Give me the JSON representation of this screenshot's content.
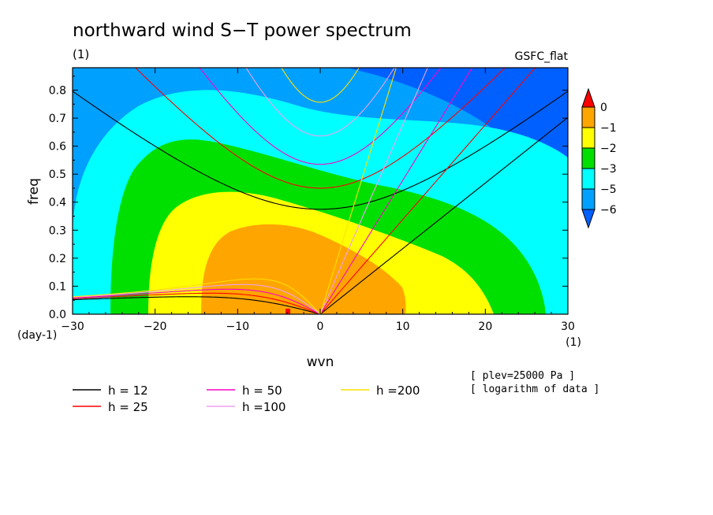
{
  "chart_data": {
    "type": "heatmap",
    "title": "northward wind S−T power spectrum",
    "subtitle_left": "(1)",
    "subtitle_right": "GSFC_flat",
    "xlabel": "wvn",
    "xunit": "(1)",
    "ylabel": "freq",
    "yunit": "(day-1)",
    "xlim": [
      -30,
      30
    ],
    "ylim": [
      0,
      0.88
    ],
    "xticks": [
      -30,
      -20,
      -10,
      0,
      10,
      20,
      30
    ],
    "xtick_labels": [
      "−30",
      "−20",
      "−10",
      "0",
      "10",
      "20",
      "30"
    ],
    "yticks": [
      0,
      0.1,
      0.2,
      0.3,
      0.4,
      0.5,
      0.6,
      0.7,
      0.8
    ],
    "ytick_labels": [
      "0.0",
      "0.1",
      "0.2",
      "0.3",
      "0.4",
      "0.5",
      "0.6",
      "0.7",
      "0.8"
    ],
    "colorbar": {
      "levels": [
        0,
        -1,
        -2,
        -3,
        -5,
        -6
      ],
      "labels": [
        "0",
        "−1",
        "−2",
        "−3",
        "−5",
        "−6"
      ],
      "colors": [
        "#ff0000",
        "#ffa500",
        "#ffff00",
        "#00e000",
        "#00ffff",
        "#00a0ff",
        "#0060ff"
      ]
    },
    "dispersion_curves": [
      {
        "label": "h = 12",
        "h": 12,
        "color": "#000000"
      },
      {
        "label": "h = 25",
        "h": 25,
        "color": "#ff0000"
      },
      {
        "label": "h = 50",
        "h": 50,
        "color": "#ff00c8"
      },
      {
        "label": "h =100",
        "h": 100,
        "color": "#f0a0f0"
      },
      {
        "label": "h =200",
        "h": 200,
        "color": "#ffe000"
      }
    ],
    "annotations": [
      "[ plev=25000 Pa ]",
      "[ logarithm of data ]"
    ]
  }
}
